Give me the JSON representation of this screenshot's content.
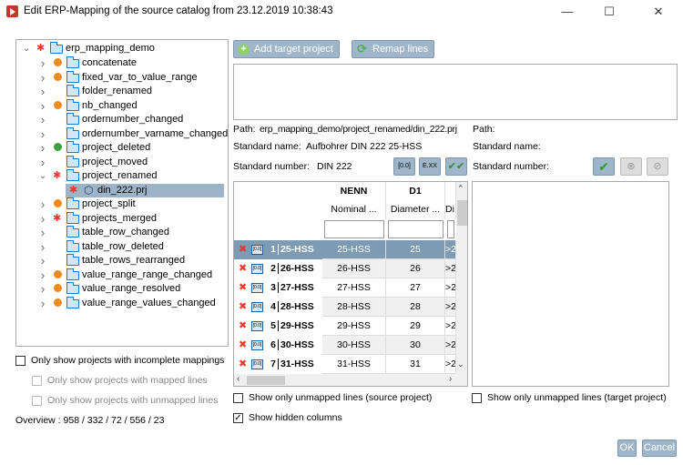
{
  "window": {
    "title": "Edit ERP-Mapping of the source catalog from 23.12.2019 10:38:43",
    "minimize": "—",
    "maximize": "☐",
    "close": "✕"
  },
  "tree": {
    "root": "erp_mapping_demo",
    "items": [
      {
        "label": "concatenate",
        "status": "warning"
      },
      {
        "label": "fixed_var_to_value_range",
        "status": "warning"
      },
      {
        "label": "folder_renamed",
        "status": "none"
      },
      {
        "label": "nb_changed",
        "status": "warning"
      },
      {
        "label": "ordernumber_changed",
        "status": "none"
      },
      {
        "label": "ordernumber_varname_changed",
        "status": "none"
      },
      {
        "label": "project_deleted",
        "status": "ok"
      },
      {
        "label": "project_moved",
        "status": "none"
      },
      {
        "label": "project_renamed",
        "status": "error",
        "expanded": true
      },
      {
        "label": "project_split",
        "status": "warning"
      },
      {
        "label": "projects_merged",
        "status": "error"
      },
      {
        "label": "table_row_changed",
        "status": "none"
      },
      {
        "label": "table_row_deleted",
        "status": "none"
      },
      {
        "label": "table_rows_rearranged",
        "status": "none"
      },
      {
        "label": "value_range_range_changed",
        "status": "warning"
      },
      {
        "label": "value_range_resolved",
        "status": "warning"
      },
      {
        "label": "value_range_values_changed",
        "status": "warning"
      }
    ],
    "selected_child": "din_222.prj"
  },
  "filters": {
    "incomplete": "Only show projects with incomplete mappings",
    "mapped": "Only show projects with mapped lines",
    "unmapped": "Only show projects with unmapped lines",
    "overview": "Overview : 958 / 332 / 72 / 556 / 23"
  },
  "toolbar": {
    "add_target": "Add target project",
    "remap": "Remap lines"
  },
  "source": {
    "path_label": "Path:",
    "path": "erp_mapping_demo/project_renamed/din_222.prj",
    "name_label": "Standard name:",
    "name": "Aufbohrer DIN 222 25-HSS",
    "number_label": "Standard number:",
    "number": "DIN 222"
  },
  "target": {
    "path_label": "Path:",
    "name_label": "Standard name:",
    "number_label": "Standard number:"
  },
  "table": {
    "columns": [
      {
        "name": "NENN",
        "desc": "Nominal ..."
      },
      {
        "name": "D1",
        "desc": "Diameter ..."
      },
      {
        "name": "",
        "desc": "Di"
      }
    ],
    "rows": [
      {
        "n": "1",
        "id": "25-HSS",
        "nenn": "25-HSS",
        "d1": "25",
        "x": ">2"
      },
      {
        "n": "2",
        "id": "26-HSS",
        "nenn": "26-HSS",
        "d1": "26",
        "x": ">2"
      },
      {
        "n": "3",
        "id": "27-HSS",
        "nenn": "27-HSS",
        "d1": "27",
        "x": ">2"
      },
      {
        "n": "4",
        "id": "28-HSS",
        "nenn": "28-HSS",
        "d1": "28",
        "x": ">2"
      },
      {
        "n": "5",
        "id": "29-HSS",
        "nenn": "29-HSS",
        "d1": "29",
        "x": ">2"
      },
      {
        "n": "6",
        "id": "30-HSS",
        "nenn": "30-HSS",
        "d1": "30",
        "x": ">2"
      },
      {
        "n": "7",
        "id": "31-HSS",
        "nenn": "31-HSS",
        "d1": "31",
        "x": ">2"
      }
    ]
  },
  "options": {
    "unmapped_source": "Show only unmapped lines (source project)",
    "hidden_columns": "Show hidden columns",
    "unmapped_target": "Show only unmapped lines (target project)"
  },
  "footer": {
    "ok": "OK",
    "cancel": "Cancel"
  }
}
